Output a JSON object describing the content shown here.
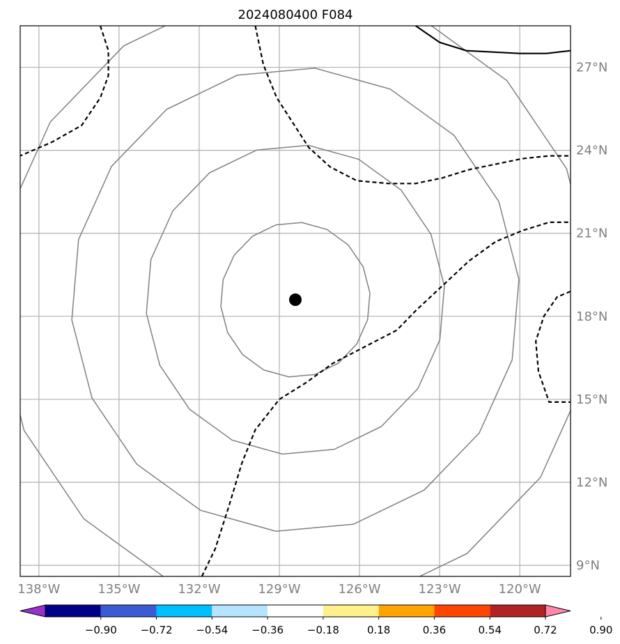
{
  "title": "2024080400 F084",
  "map": {
    "lon_range": [
      -138.7,
      -118.1
    ],
    "lat_range": [
      8.6,
      28.5
    ],
    "lat_ticks": [
      {
        "value": 9,
        "label": "9°N"
      },
      {
        "value": 12,
        "label": "12°N"
      },
      {
        "value": 15,
        "label": "15°N"
      },
      {
        "value": 18,
        "label": "18°N"
      },
      {
        "value": 21,
        "label": "21°N"
      },
      {
        "value": 24,
        "label": "24°N"
      },
      {
        "value": 27,
        "label": "27°N"
      }
    ],
    "lon_ticks": [
      {
        "value": -138,
        "label": "138°W"
      },
      {
        "value": -135,
        "label": "135°W"
      },
      {
        "value": -132,
        "label": "132°W"
      },
      {
        "value": -129,
        "label": "129°W"
      },
      {
        "value": -126,
        "label": "126°W"
      },
      {
        "value": -123,
        "label": "123°W"
      },
      {
        "value": -120,
        "label": "120°W"
      }
    ],
    "storm_center": {
      "lon": -128.4,
      "lat": 18.6
    },
    "range_rings_deg": [
      2.8,
      5.6,
      8.4,
      11.2
    ],
    "dashed_contours": [
      [
        [
          -135.7,
          28.5
        ],
        [
          -135.4,
          27.6
        ],
        [
          -135.4,
          26.7
        ],
        [
          -135.7,
          25.9
        ],
        [
          -136.4,
          24.9
        ],
        [
          -137.5,
          24.3
        ],
        [
          -138.7,
          23.8
        ]
      ],
      [
        [
          -129.9,
          28.5
        ],
        [
          -129.6,
          27.1
        ],
        [
          -129.1,
          25.9
        ],
        [
          -128.5,
          25.0
        ],
        [
          -127.9,
          24.1
        ],
        [
          -127.1,
          23.4
        ],
        [
          -126.1,
          22.9
        ],
        [
          -124.9,
          22.8
        ],
        [
          -123.9,
          22.8
        ],
        [
          -122.9,
          23.0
        ],
        [
          -121.9,
          23.3
        ],
        [
          -120.9,
          23.5
        ],
        [
          -119.9,
          23.7
        ],
        [
          -118.9,
          23.8
        ],
        [
          -118.1,
          23.8
        ]
      ],
      [
        [
          -131.9,
          8.6
        ],
        [
          -131.4,
          9.6
        ],
        [
          -130.9,
          11.1
        ],
        [
          -130.4,
          12.7
        ],
        [
          -129.9,
          13.9
        ],
        [
          -129.0,
          15.0
        ],
        [
          -128.0,
          15.6
        ],
        [
          -127.0,
          16.3
        ],
        [
          -125.8,
          16.9
        ],
        [
          -124.6,
          17.5
        ],
        [
          -123.9,
          18.2
        ],
        [
          -122.9,
          19.1
        ],
        [
          -121.9,
          20.0
        ],
        [
          -120.9,
          20.7
        ],
        [
          -119.9,
          21.1
        ],
        [
          -118.9,
          21.4
        ],
        [
          -118.1,
          21.4
        ]
      ],
      [
        [
          -118.1,
          18.9
        ],
        [
          -118.6,
          18.7
        ],
        [
          -119.1,
          18.0
        ],
        [
          -119.4,
          17.1
        ],
        [
          -119.3,
          16.0
        ],
        [
          -118.9,
          14.9
        ],
        [
          -118.1,
          14.9
        ]
      ]
    ],
    "solid_contours": [
      [
        [
          -123.9,
          28.5
        ],
        [
          -123.0,
          27.9
        ],
        [
          -122.0,
          27.6
        ],
        [
          -120.0,
          27.5
        ],
        [
          -119.0,
          27.5
        ],
        [
          -118.1,
          27.6
        ]
      ]
    ]
  },
  "colorbar": {
    "colors": [
      "#9932cc",
      "#00008b",
      "#3b5bd4",
      "#00bfff",
      "#b4e4ff",
      "#ffffff",
      "#fff08c",
      "#ffa500",
      "#ff4500",
      "#b22222",
      "#ff88aa"
    ],
    "labels": [
      "−0.90",
      "−0.72",
      "−0.54",
      "−0.36",
      "−0.18",
      "0.18",
      "0.36",
      "0.54",
      "0.72",
      "0.90"
    ]
  }
}
